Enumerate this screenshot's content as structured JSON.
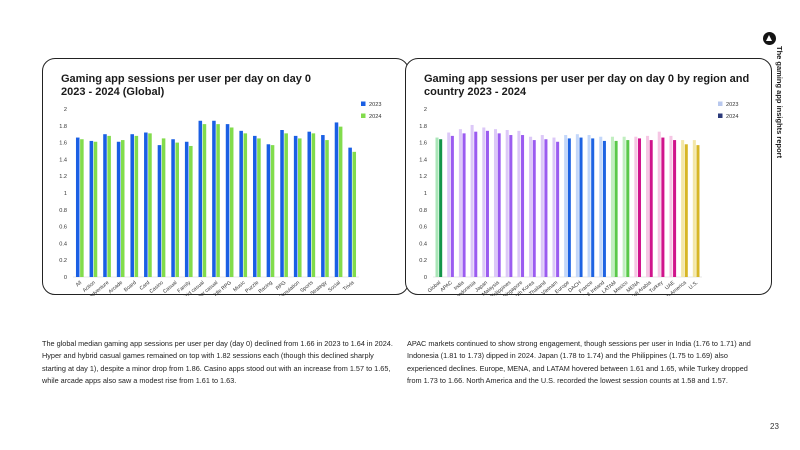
{
  "report_title": "The gaming app insights report",
  "page_number": "23",
  "colors": {
    "blue_2023": "#1a5fe4",
    "green_2024": "#82dc4c"
  },
  "paragraphs": {
    "left": "The global median gaming app sessions per user per day (day 0) declined from 1.66 in 2023 to 1.64 in 2024. Hyper and hybrid casual games remained on top with 1.82 sessions each (though this declined sharply starting at day 1), despite a minor drop from 1.86. Casino apps stood out with an increase from 1.57 to 1.65, while arcade apps also saw a modest rise from 1.61 to 1.63.",
    "right": "APAC markets continued to show strong engagement, though sessions per user in India (1.76 to 1.71) and Indonesia (1.81 to 1.73) dipped in 2024. Japan (1.78 to 1.74) and the Philippines (1.75 to 1.69) also experienced declines. Europe, MENA, and LATAM hovered between 1.61 and 1.65, while Turkey dropped from 1.73 to 1.66. North America and the U.S. recorded the lowest session counts at 1.58 and 1.57."
  },
  "chart_data": [
    {
      "type": "bar",
      "title": "Gaming app sessions per user per day on day 0\n2023 - 2024 (Global)",
      "xlabel": "",
      "ylabel": "",
      "ylim": [
        0,
        2
      ],
      "yticks": [
        "0",
        "0.2",
        "0.4",
        "0.6",
        "0.8",
        "1",
        "1.2",
        "1.4",
        "1.6",
        "1.8",
        "2"
      ],
      "legend": "right",
      "categories": [
        "All",
        "Action",
        "Adventure",
        "Arcade",
        "Board",
        "Card",
        "Casino",
        "Casual",
        "Family",
        "Hybrid casual",
        "Hyper casual",
        "Idle RPG",
        "Music",
        "Puzzle",
        "Racing",
        "RPG",
        "Simulation",
        "Sports",
        "Strategy",
        "Social",
        "Trivia"
      ],
      "series": [
        {
          "name": "2023",
          "color": "#1a5fe4",
          "values": [
            1.66,
            1.62,
            1.7,
            1.61,
            1.7,
            1.72,
            1.57,
            1.64,
            1.61,
            1.86,
            1.86,
            1.82,
            1.74,
            1.68,
            1.58,
            1.75,
            1.68,
            1.73,
            1.69,
            1.84,
            1.54
          ]
        },
        {
          "name": "2024",
          "color": "#82dc4c",
          "values": [
            1.64,
            1.61,
            1.68,
            1.63,
            1.68,
            1.71,
            1.65,
            1.6,
            1.56,
            1.82,
            1.82,
            1.78,
            1.71,
            1.65,
            1.57,
            1.71,
            1.65,
            1.71,
            1.63,
            1.79,
            1.49
          ]
        }
      ]
    },
    {
      "type": "bar",
      "title": "Gaming app sessions per user per day on day 0 by region and\ncountry 2023 - 2024",
      "xlabel": "",
      "ylabel": "",
      "ylim": [
        0,
        2
      ],
      "yticks": [
        "0",
        "0.2",
        "0.4",
        "0.6",
        "0.8",
        "1",
        "1.2",
        "1.4",
        "1.6",
        "1.8",
        "2"
      ],
      "legend": "right",
      "categories": [
        "Global",
        "APAC",
        "India",
        "Indonesia",
        "Japan",
        "Malaysia",
        "Philippines",
        "Singapore",
        "South Korea",
        "Thailand",
        "Vietnam",
        "Europe",
        "DACH",
        "France",
        "U.K. & Ireland",
        "LATAM",
        "Mexico",
        "MENA",
        "Saudi Arabia",
        "Turkey",
        "UAE",
        "North America",
        "U.S."
      ],
      "legend_series": [
        {
          "name": "2023",
          "color": "#b8c8ee"
        },
        {
          "name": "2024",
          "color": "#2b3a7a"
        }
      ],
      "series": [
        {
          "name": "2023",
          "values": [
            1.66,
            1.72,
            1.76,
            1.81,
            1.78,
            1.76,
            1.75,
            1.74,
            1.67,
            1.69,
            1.66,
            1.69,
            1.7,
            1.69,
            1.67,
            1.67,
            1.67,
            1.67,
            1.68,
            1.73,
            1.68,
            1.63,
            1.63
          ],
          "colors": [
            "#a9e6b7",
            "#dcc8f8",
            "#dcc8f8",
            "#dcc8f8",
            "#dcc8f8",
            "#dcc8f8",
            "#dcc8f8",
            "#dcc8f8",
            "#dcc8f8",
            "#dcc8f8",
            "#dcc8f8",
            "#c3d7fa",
            "#c3d7fa",
            "#c3d7fa",
            "#c3d7fa",
            "#c1efc0",
            "#c1efc0",
            "#f6c6e4",
            "#f6c6e4",
            "#f6c6e4",
            "#f6c6e4",
            "#f3e7a7",
            "#f3e7a7"
          ]
        },
        {
          "name": "2024",
          "values": [
            1.64,
            1.68,
            1.71,
            1.73,
            1.74,
            1.71,
            1.69,
            1.69,
            1.63,
            1.64,
            1.61,
            1.65,
            1.66,
            1.65,
            1.62,
            1.62,
            1.63,
            1.65,
            1.63,
            1.66,
            1.63,
            1.58,
            1.57
          ],
          "colors": [
            "#13944a",
            "#9b5cf0",
            "#9b5cf0",
            "#9b5cf0",
            "#9b5cf0",
            "#9b5cf0",
            "#9b5cf0",
            "#9b5cf0",
            "#9b5cf0",
            "#9b5cf0",
            "#9b5cf0",
            "#1e63e2",
            "#1e63e2",
            "#1e63e2",
            "#1e63e2",
            "#5ac94a",
            "#5ac94a",
            "#d0148c",
            "#d0148c",
            "#d0148c",
            "#d0148c",
            "#d7b626",
            "#d7b626"
          ]
        }
      ]
    }
  ]
}
